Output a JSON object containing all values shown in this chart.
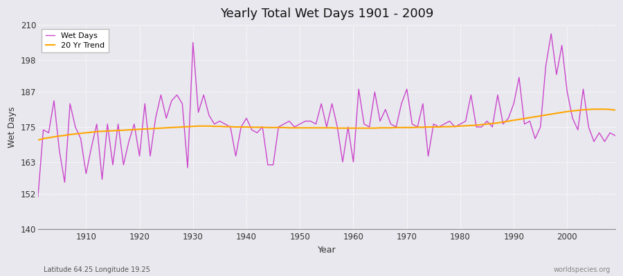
{
  "title": "Yearly Total Wet Days 1901 - 2009",
  "xlabel": "Year",
  "ylabel": "Wet Days",
  "lat_lon_label": "Latitude 64.25 Longitude 19.25",
  "watermark": "worldspecies.org",
  "line_color": "#CC44CC",
  "trend_color": "#FFA500",
  "plot_bg_color": "#E8E8EE",
  "fig_bg_color": "#E8E8EE",
  "grid_color": "#FFFFFF",
  "ylim": [
    140,
    210
  ],
  "yticks": [
    140,
    152,
    163,
    175,
    187,
    198,
    210
  ],
  "xlim": [
    1901,
    2009
  ],
  "xticks": [
    1910,
    1920,
    1930,
    1940,
    1950,
    1960,
    1970,
    1980,
    1990,
    2000
  ],
  "years": [
    1901,
    1902,
    1903,
    1904,
    1905,
    1906,
    1907,
    1908,
    1909,
    1910,
    1911,
    1912,
    1913,
    1914,
    1915,
    1916,
    1917,
    1918,
    1919,
    1920,
    1921,
    1922,
    1923,
    1924,
    1925,
    1926,
    1927,
    1928,
    1929,
    1930,
    1931,
    1932,
    1933,
    1934,
    1935,
    1936,
    1937,
    1938,
    1939,
    1940,
    1941,
    1942,
    1943,
    1944,
    1945,
    1946,
    1947,
    1948,
    1949,
    1950,
    1951,
    1952,
    1953,
    1954,
    1955,
    1956,
    1957,
    1958,
    1959,
    1960,
    1961,
    1962,
    1963,
    1964,
    1965,
    1966,
    1967,
    1968,
    1969,
    1970,
    1971,
    1972,
    1973,
    1974,
    1975,
    1976,
    1977,
    1978,
    1979,
    1980,
    1981,
    1982,
    1983,
    1984,
    1985,
    1986,
    1987,
    1988,
    1989,
    1990,
    1991,
    1992,
    1993,
    1994,
    1995,
    1996,
    1997,
    1998,
    1999,
    2000,
    2001,
    2002,
    2003,
    2004,
    2005,
    2006,
    2007,
    2008,
    2009
  ],
  "wet_days": [
    151,
    174,
    173,
    184,
    167,
    156,
    183,
    175,
    171,
    159,
    168,
    176,
    157,
    176,
    162,
    176,
    162,
    170,
    176,
    165,
    183,
    165,
    178,
    186,
    178,
    184,
    186,
    183,
    161,
    204,
    180,
    186,
    179,
    176,
    177,
    176,
    175,
    165,
    175,
    178,
    174,
    173,
    175,
    162,
    162,
    175,
    176,
    177,
    175,
    176,
    177,
    177,
    176,
    183,
    175,
    183,
    175,
    163,
    175,
    163,
    188,
    176,
    175,
    187,
    177,
    181,
    176,
    175,
    183,
    188,
    176,
    175,
    183,
    165,
    176,
    175,
    176,
    177,
    175,
    176,
    177,
    186,
    175,
    175,
    177,
    175,
    186,
    176,
    178,
    183,
    192,
    176,
    177,
    171,
    175,
    196,
    207,
    193,
    203,
    187,
    178,
    174,
    188,
    175,
    170,
    173,
    170,
    173,
    172
  ],
  "trend": [
    170.5,
    171.0,
    171.3,
    171.6,
    171.9,
    172.1,
    172.4,
    172.6,
    172.8,
    173.0,
    173.2,
    173.4,
    173.5,
    173.6,
    173.7,
    173.8,
    173.9,
    174.0,
    174.1,
    174.2,
    174.3,
    174.4,
    174.5,
    174.6,
    174.7,
    174.8,
    174.9,
    175.0,
    175.1,
    175.2,
    175.3,
    175.3,
    175.3,
    175.2,
    175.2,
    175.1,
    175.1,
    175.0,
    175.0,
    175.0,
    174.9,
    174.9,
    174.9,
    174.8,
    174.8,
    174.8,
    174.8,
    174.7,
    174.7,
    174.7,
    174.7,
    174.7,
    174.7,
    174.7,
    174.7,
    174.7,
    174.6,
    174.6,
    174.6,
    174.6,
    174.6,
    174.6,
    174.6,
    174.6,
    174.7,
    174.7,
    174.7,
    174.8,
    174.8,
    174.8,
    174.8,
    174.9,
    174.9,
    175.0,
    175.0,
    175.0,
    175.1,
    175.1,
    175.2,
    175.3,
    175.4,
    175.5,
    175.6,
    175.8,
    176.0,
    176.2,
    176.4,
    176.7,
    177.0,
    177.3,
    177.6,
    177.9,
    178.2,
    178.5,
    178.8,
    179.1,
    179.4,
    179.7,
    180.0,
    180.3,
    180.5,
    180.7,
    180.9,
    181.0,
    181.1,
    181.1,
    181.1,
    181.0,
    180.8
  ]
}
